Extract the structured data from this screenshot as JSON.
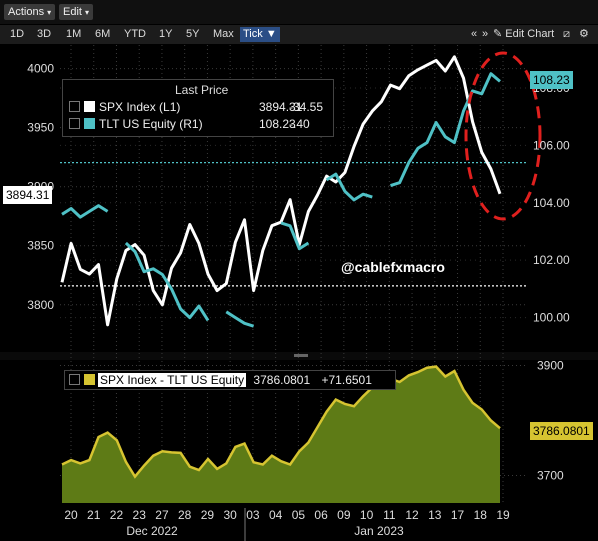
{
  "toolbar": {
    "actions_label": "Actions",
    "edit_label": "Edit",
    "range_buttons": [
      "1D",
      "3D",
      "1M",
      "6M",
      "YTD",
      "1Y",
      "5Y",
      "Max"
    ],
    "tick_label": "Tick",
    "edit_chart_label": "Edit Chart"
  },
  "legend_top": {
    "header": "Last Price",
    "rows": [
      {
        "name": "SPX Index  (L1)",
        "value": "3894.31",
        "change": "-34.55",
        "color": "#ffffff"
      },
      {
        "name": "TLT US Equity  (R1)",
        "value": "108.23",
        "change": "-.40",
        "color": "#4fc1c6"
      }
    ]
  },
  "legend_bottom": {
    "name": "SPX Index - TLT US Equity",
    "value": "3786.0801",
    "change": "+71.6501",
    "color": "#d6c431"
  },
  "watermark": "@cablefxmacro",
  "badges": {
    "spx_last": "3894.31",
    "tlt_last": "108.23",
    "spread_last": "3786.0801"
  },
  "chart_data": [
    {
      "type": "line",
      "title": "",
      "x_tick_labels": [
        "20",
        "21",
        "22",
        "23",
        "27",
        "28",
        "29",
        "30",
        "03",
        "04",
        "05",
        "06",
        "09",
        "10",
        "11",
        "12",
        "13",
        "17",
        "18",
        "19"
      ],
      "x_group_labels": [
        "Dec 2022",
        "Jan 2023"
      ],
      "y_left_ticks": [
        "4000",
        "3950",
        "3900",
        "3850",
        "3800"
      ],
      "y_left_range": [
        3760,
        4020
      ],
      "y_right_ticks": [
        "108.00",
        "106.00",
        "104.00",
        "102.00",
        "100.00"
      ],
      "y_right_range": [
        98.8,
        109.5
      ],
      "reference_lines": {
        "spx_last": 3816,
        "tlt_last": 105.4
      },
      "series": [
        {
          "name": "SPX Index",
          "axis": "left",
          "color": "#ffffff",
          "values": [
            3819,
            3852,
            3830,
            3826,
            3834,
            3783,
            3822,
            3846,
            3851,
            3842,
            3812,
            3800,
            3831,
            3844,
            3868,
            3852,
            3826,
            3812,
            3818,
            3853,
            3872,
            3812,
            3846,
            3867,
            3870,
            3889,
            3851,
            3879,
            3893,
            3909,
            3904,
            3912,
            3934,
            3953,
            3964,
            3972,
            3986,
            3983,
            3994,
            3999,
            4003,
            4007,
            3998,
            4010,
            3992,
            3955,
            3929,
            3915,
            3894
          ]
        },
        {
          "name": "TLT US Equity",
          "axis": "right",
          "color": "#4fc1c6",
          "values": [
            103.6,
            103.8,
            103.5,
            103.7,
            103.9,
            103.7,
            null,
            102.6,
            102.3,
            101.6,
            101.7,
            101.5,
            101.0,
            100.3,
            100.0,
            100.4,
            99.9,
            null,
            100.2,
            100.0,
            99.8,
            99.7,
            null,
            null,
            103.3,
            103.2,
            102.4,
            102.6,
            null,
            104.8,
            105.0,
            104.4,
            104.1,
            104.3,
            104.2,
            null,
            104.6,
            104.7,
            105.4,
            105.9,
            106.1,
            106.8,
            106.3,
            106.1,
            107.2,
            107.9,
            107.8,
            108.5,
            108.23
          ]
        }
      ]
    },
    {
      "type": "area",
      "title": "",
      "y_ticks": [
        "3900",
        "3700"
      ],
      "y_range": [
        3650,
        3910
      ],
      "series": [
        {
          "name": "SPX Index - TLT US Equity",
          "color": "#d6c431",
          "values": [
            3720,
            3728,
            3722,
            3728,
            3770,
            3778,
            3764,
            3725,
            3698,
            3718,
            3736,
            3744,
            3742,
            3741,
            3716,
            3710,
            3730,
            3712,
            3722,
            3752,
            3758,
            3724,
            3720,
            3736,
            3726,
            3720,
            3744,
            3760,
            3788,
            3816,
            3838,
            3830,
            3826,
            3844,
            3860,
            3872,
            3876,
            3870,
            3882,
            3888,
            3896,
            3898,
            3880,
            3890,
            3856,
            3832,
            3820,
            3800,
            3786
          ]
        }
      ]
    }
  ]
}
